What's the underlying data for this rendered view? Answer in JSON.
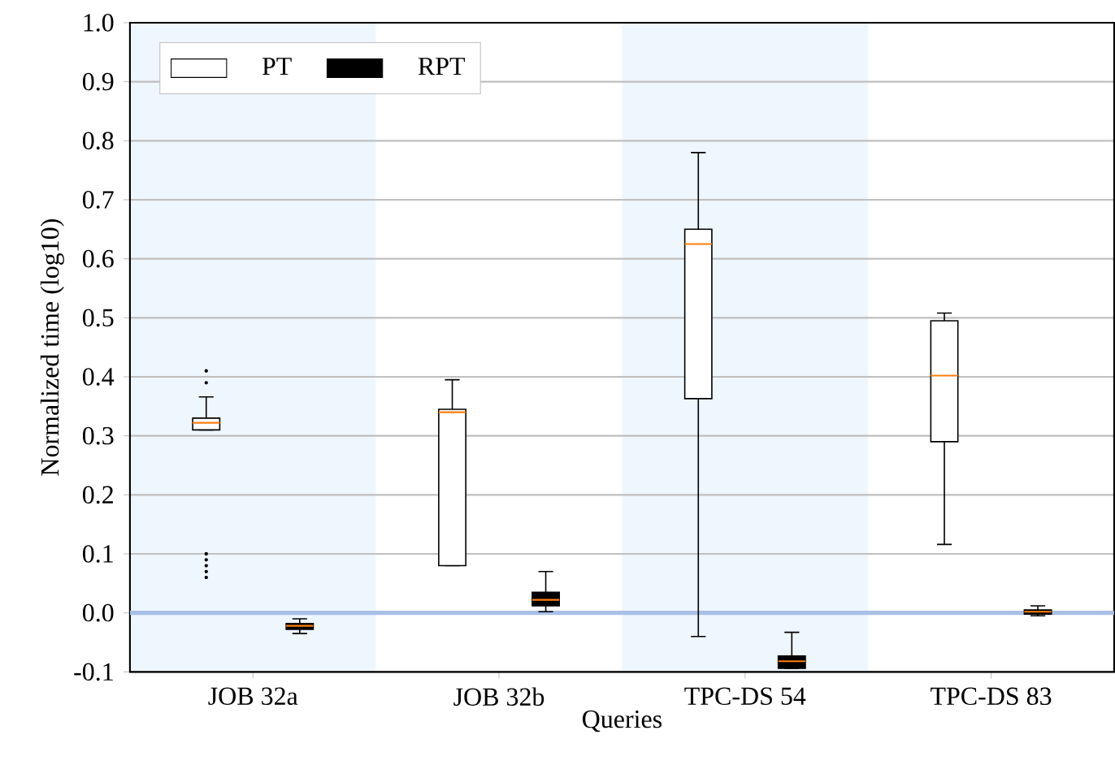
{
  "chart_data": {
    "type": "box",
    "xlabel": "Queries",
    "ylabel": "Normalized time (log10)",
    "categories": [
      "JOB 32a",
      "JOB 32b",
      "TPC-DS 54",
      "TPC-DS 83"
    ],
    "series": [
      {
        "name": "PT",
        "color": "#ffffff",
        "boxes": [
          {
            "low": 0.31,
            "q1": 0.31,
            "median": 0.322,
            "q3": 0.33,
            "high": 0.366,
            "outliers": [
              0.39,
              0.41,
              0.06,
              0.07,
              0.08,
              0.09,
              0.1
            ]
          },
          {
            "low": 0.08,
            "q1": 0.08,
            "median": 0.34,
            "q3": 0.345,
            "high": 0.395
          },
          {
            "low": -0.04,
            "q1": 0.363,
            "median": 0.625,
            "q3": 0.65,
            "high": 0.78
          },
          {
            "low": 0.116,
            "q1": 0.29,
            "median": 0.402,
            "q3": 0.495,
            "high": 0.508
          }
        ]
      },
      {
        "name": "RPT",
        "color": "#000000",
        "boxes": [
          {
            "low": -0.035,
            "q1": -0.028,
            "median": -0.022,
            "q3": -0.018,
            "high": -0.01
          },
          {
            "low": 0.002,
            "q1": 0.012,
            "median": 0.022,
            "q3": 0.035,
            "high": 0.07
          },
          {
            "low": -0.094,
            "q1": -0.094,
            "median": -0.082,
            "q3": -0.073,
            "high": -0.033
          },
          {
            "low": -0.005,
            "q1": -0.002,
            "median": 0.002,
            "q3": 0.005,
            "high": 0.012
          }
        ]
      }
    ],
    "ylim": [
      -0.1,
      1.0
    ],
    "yticks": [
      {
        "value": -0.1,
        "label": "-0.1"
      },
      {
        "value": 0,
        "label": "0.0"
      },
      {
        "value": 0.1,
        "label": "0.1"
      },
      {
        "value": 0.2,
        "label": "0.2"
      },
      {
        "value": 0.3,
        "label": "0.3"
      },
      {
        "value": 0.4,
        "label": "0.4"
      },
      {
        "value": 0.5,
        "label": "0.5"
      },
      {
        "value": 0.6,
        "label": "0.6"
      },
      {
        "value": 0.7,
        "label": "0.7"
      },
      {
        "value": 0.8,
        "label": "0.8"
      },
      {
        "value": 0.9,
        "label": "0.9"
      },
      {
        "value": 1.0,
        "label": "1.0"
      }
    ],
    "grid": "y",
    "legend": "top left",
    "ref_lines": [
      {
        "axis": "y",
        "value": 0,
        "color": "#a9c0e6"
      }
    ]
  }
}
